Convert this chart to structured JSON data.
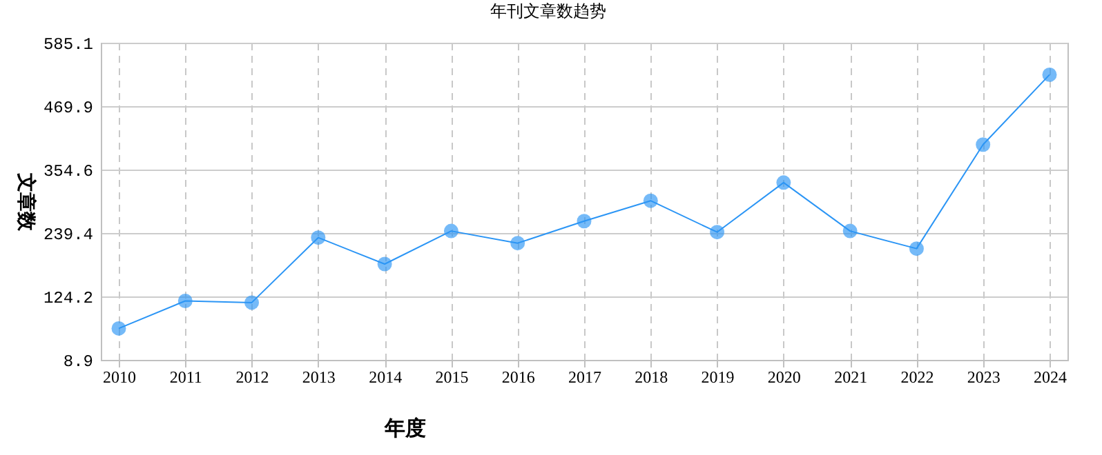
{
  "chart_data": {
    "type": "line",
    "title": "年刊文章数趋势",
    "xlabel": "年度",
    "ylabel": "文章数",
    "categories": [
      "2010",
      "2011",
      "2012",
      "2013",
      "2014",
      "2015",
      "2016",
      "2017",
      "2018",
      "2019",
      "2020",
      "2021",
      "2022",
      "2023",
      "2024"
    ],
    "series": [
      {
        "color": "#2b95f5",
        "values": [
          66,
          116,
          113,
          231,
          183,
          243,
          221,
          261,
          298,
          241,
          331,
          243,
          211,
          400,
          527
        ]
      }
    ],
    "ylim": [
      8.9,
      585.1
    ],
    "yticks": [
      8.9,
      124.2,
      239.4,
      354.6,
      469.9,
      585.1
    ],
    "grid": true,
    "marker": "circle",
    "line_style": "solid"
  }
}
